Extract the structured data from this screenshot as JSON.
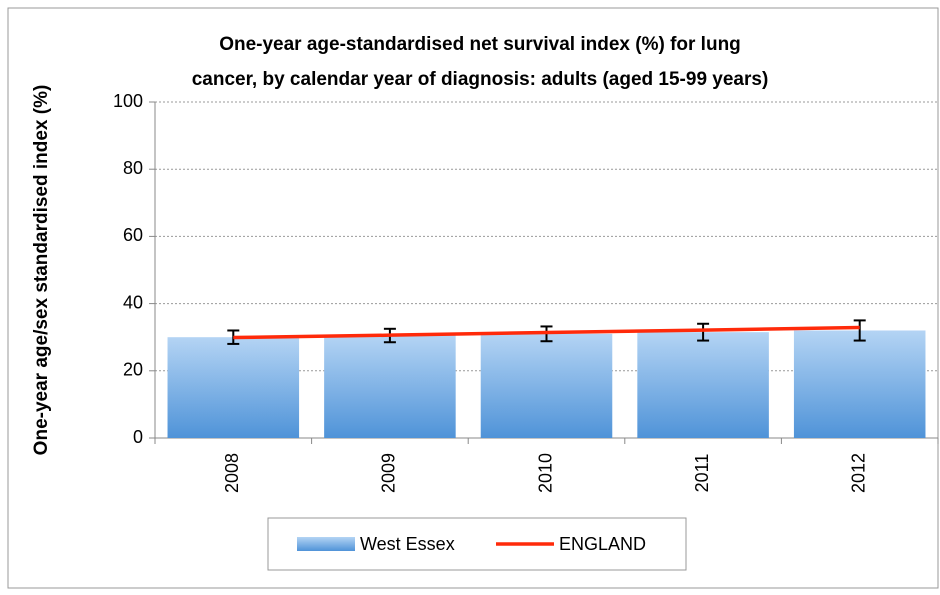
{
  "chart_data": {
    "type": "bar",
    "title": [
      "One-year age-standardised net survival index (%) for lung",
      "cancer, by calendar year of diagnosis: adults (aged 15-99 years)"
    ],
    "y_label": "One-year age/sex standardised index (%)",
    "categories": [
      "2008",
      "2009",
      "2010",
      "2011",
      "2012"
    ],
    "series": [
      {
        "name": "West Essex",
        "type": "bar",
        "color": "#6fa8e0",
        "values": [
          30,
          30.5,
          31,
          31.5,
          32
        ],
        "errors": [
          2,
          2,
          2.2,
          2.5,
          3
        ]
      },
      {
        "name": "ENGLAND",
        "type": "line",
        "color": "#ff2a0a",
        "values": [
          29.9,
          30.6,
          31.4,
          32.1,
          32.9
        ]
      }
    ],
    "ylim": [
      0,
      100
    ],
    "yticks": [
      0,
      20,
      40,
      60,
      80,
      100
    ],
    "grid": true,
    "legend": "bottom"
  }
}
